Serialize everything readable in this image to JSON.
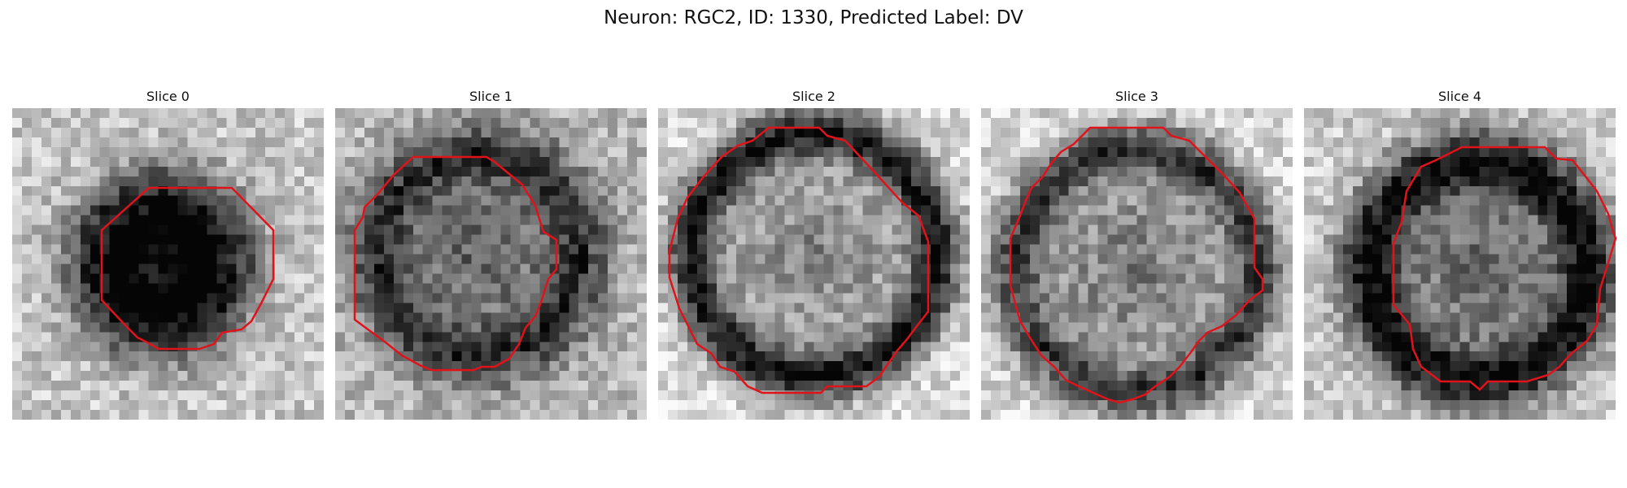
{
  "figure": {
    "title": "Neuron: RGC2, ID: 1330, Predicted Label: DV"
  },
  "contour_color": "#e0131b",
  "colormap": "gray",
  "panels": [
    {
      "label": "Slice 0"
    },
    {
      "label": "Slice 1"
    },
    {
      "label": "Slice 2"
    },
    {
      "label": "Slice 3"
    },
    {
      "label": "Slice 4"
    }
  ]
}
